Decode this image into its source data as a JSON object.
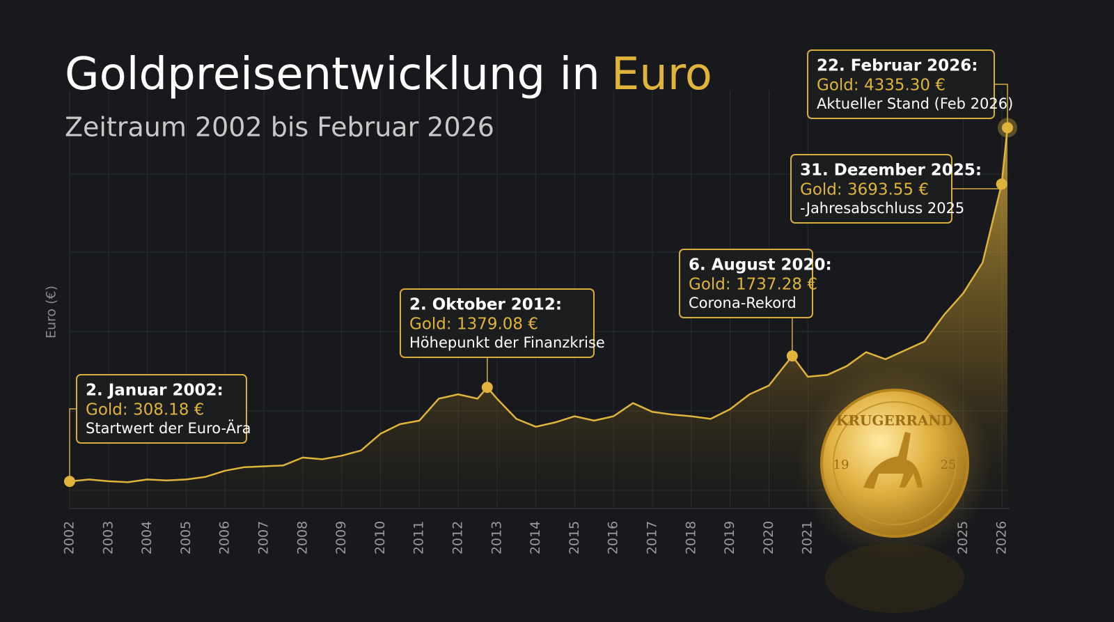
{
  "chart_data": {
    "type": "line",
    "title": "Goldpreisentwicklung in",
    "title_highlight": "Euro",
    "subtitle": "Zeitraum 2002 bis Februar 2026",
    "y_label": "Euro (€)",
    "color": "#e0b43a",
    "xlim": [
      2002,
      2026.14
    ],
    "xticks": [
      2002,
      2003,
      2004,
      2005,
      2006,
      2007,
      2008,
      2009,
      2010,
      2011,
      2012,
      2013,
      2014,
      2015,
      2016,
      2017,
      2018,
      2019,
      2020,
      2021,
      2025,
      2026
    ],
    "ylim": [
      0,
      4600
    ],
    "grid": true,
    "x": [
      2002,
      2002.5,
      2003,
      2003.5,
      2004,
      2004.5,
      2005,
      2005.5,
      2006,
      2006.5,
      2007,
      2007.5,
      2008,
      2008.5,
      2009,
      2009.5,
      2010,
      2010.5,
      2011,
      2011.5,
      2012,
      2012.5,
      2012.75,
      2013,
      2013.5,
      2014,
      2014.5,
      2015,
      2015.5,
      2016,
      2016.5,
      2017,
      2017.5,
      2018,
      2018.5,
      2019,
      2019.5,
      2020,
      2020.6,
      2021,
      2021.5,
      2022,
      2022.5,
      2023,
      2023.5,
      2024,
      2024.5,
      2025,
      2025.5,
      2025.99,
      2026.14
    ],
    "values": [
      308.18,
      330,
      310,
      300,
      330,
      320,
      330,
      360,
      430,
      470,
      480,
      490,
      580,
      560,
      600,
      660,
      850,
      960,
      1000,
      1250,
      1300,
      1250,
      1379.08,
      1250,
      1020,
      930,
      980,
      1050,
      1000,
      1050,
      1200,
      1100,
      1070,
      1050,
      1020,
      1130,
      1300,
      1400,
      1737.28,
      1500,
      1520,
      1620,
      1780,
      1700,
      1800,
      1900,
      2200,
      2450,
      2800,
      3693.55,
      4335.3
    ],
    "annotations": [
      {
        "date": "2. Januar 2002:",
        "x": 2002,
        "value": 308.18,
        "value_label": "Gold: 308.18 €",
        "note": "Startwert der Euro-Ära"
      },
      {
        "date": "2. Oktober 2012:",
        "x": 2012.75,
        "value": 1379.08,
        "value_label": "Gold: 1379.08 €",
        "note": "Höhepunkt der Finanzkrise"
      },
      {
        "date": "6. August 2020:",
        "x": 2020.6,
        "value": 1737.28,
        "value_label": "Gold: 1737.28 €",
        "note": "Corona-Rekord"
      },
      {
        "date": "31. Dezember 2025:",
        "x": 2025.99,
        "value": 3693.55,
        "value_label": "Gold: 3693.55 €",
        "note": "-Jahresabschluss 2025"
      },
      {
        "date": "22. Februar 2026:",
        "x": 2026.14,
        "value": 4335.3,
        "value_label": "Gold: 4335.30 €",
        "note": "Aktueller Stand (Feb 2026)"
      }
    ],
    "coin": {
      "legend": "KRUGERRAND",
      "left": "19",
      "right": "25"
    }
  }
}
